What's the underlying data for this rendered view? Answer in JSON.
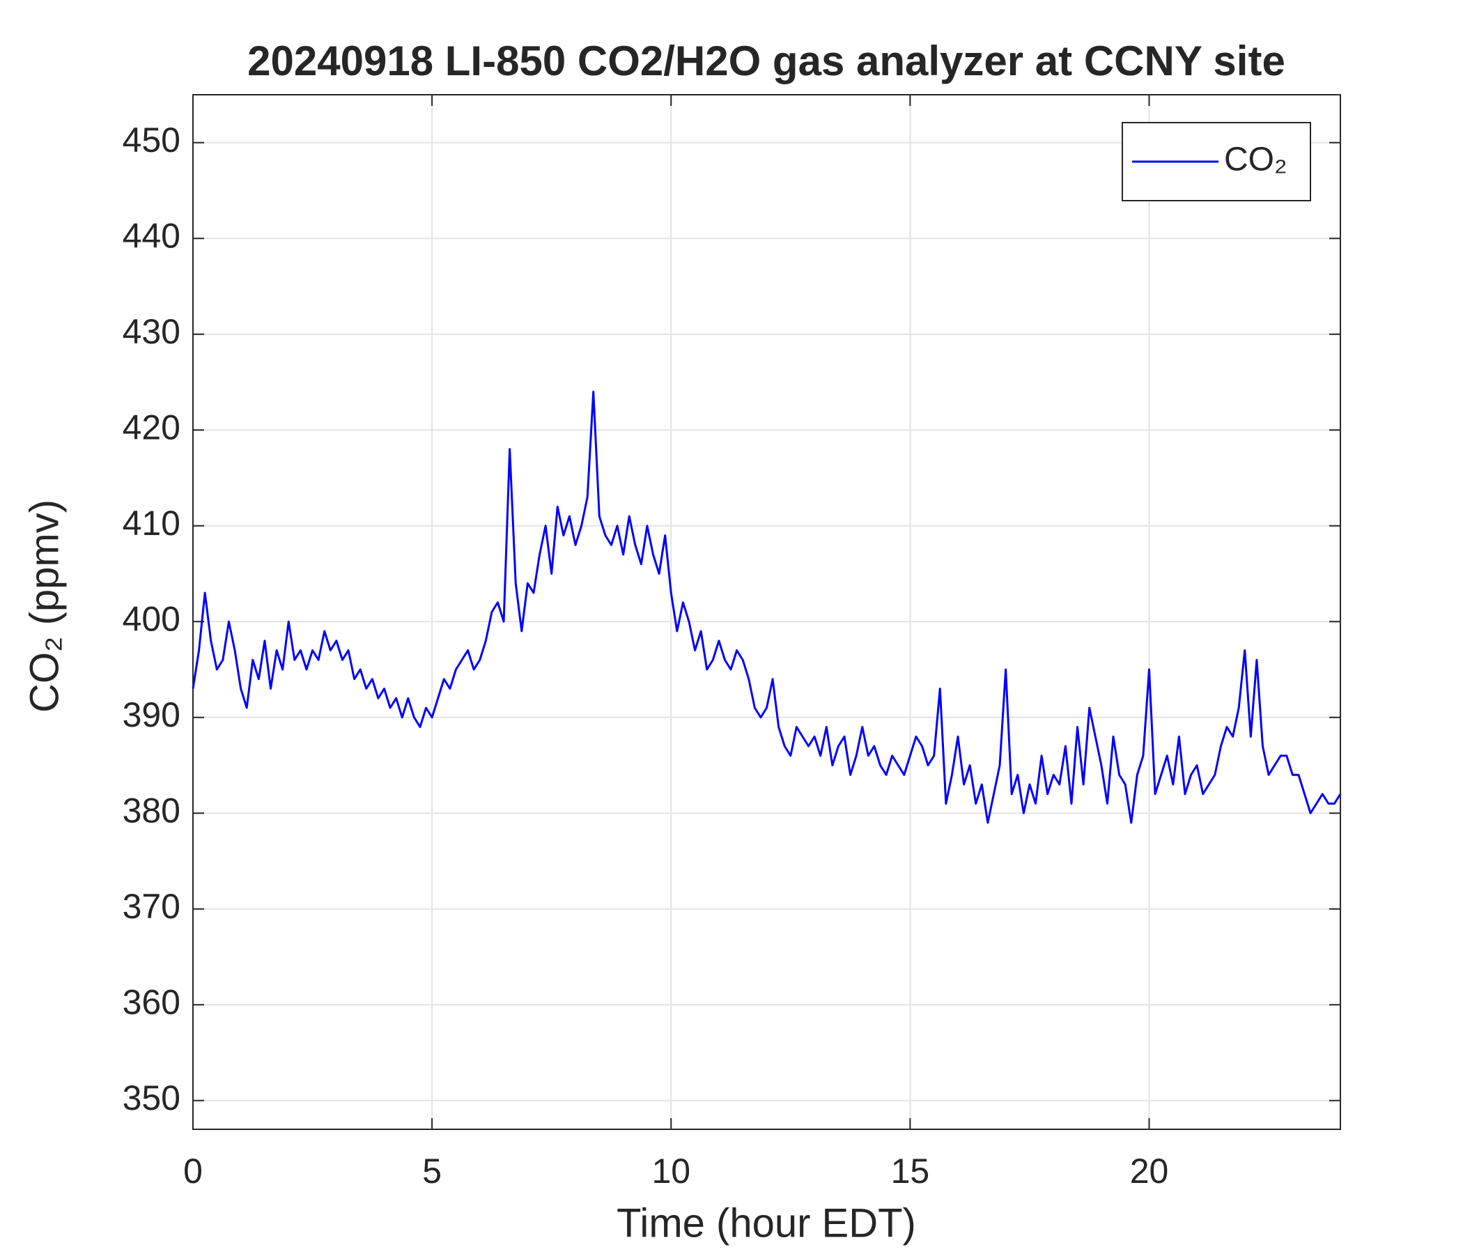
{
  "chart_data": {
    "type": "line",
    "title": "20240918 LI-850 CO2/H2O gas analyzer at CCNY site",
    "xlabel": "Time (hour EDT)",
    "ylabel": "CO₂ (ppmv)",
    "xlim": [
      0,
      24
    ],
    "xticks": [
      0,
      5,
      10,
      15,
      20
    ],
    "ylim": [
      347,
      455
    ],
    "yticks": [
      350,
      360,
      370,
      380,
      390,
      400,
      410,
      420,
      430,
      440,
      450
    ],
    "grid": true,
    "legend": "upper right",
    "x": [
      0,
      0.125,
      0.25,
      0.375,
      0.5,
      0.625,
      0.75,
      0.875,
      1,
      1.125,
      1.25,
      1.375,
      1.5,
      1.625,
      1.75,
      1.875,
      2,
      2.125,
      2.25,
      2.375,
      2.5,
      2.625,
      2.75,
      2.875,
      3,
      3.125,
      3.25,
      3.375,
      3.5,
      3.625,
      3.75,
      3.875,
      4,
      4.125,
      4.25,
      4.375,
      4.5,
      4.625,
      4.75,
      4.875,
      5,
      5.125,
      5.25,
      5.375,
      5.5,
      5.625,
      5.75,
      5.875,
      6,
      6.125,
      6.25,
      6.375,
      6.5,
      6.625,
      6.75,
      6.875,
      7,
      7.125,
      7.25,
      7.375,
      7.5,
      7.625,
      7.75,
      7.875,
      8,
      8.125,
      8.25,
      8.375,
      8.5,
      8.625,
      8.75,
      8.875,
      9,
      9.125,
      9.25,
      9.375,
      9.5,
      9.625,
      9.75,
      9.875,
      10,
      10.125,
      10.25,
      10.375,
      10.5,
      10.625,
      10.75,
      10.875,
      11,
      11.125,
      11.25,
      11.375,
      11.5,
      11.625,
      11.75,
      11.875,
      12,
      12.125,
      12.25,
      12.375,
      12.5,
      12.625,
      12.75,
      12.875,
      13,
      13.125,
      13.25,
      13.375,
      13.5,
      13.625,
      13.75,
      13.875,
      14,
      14.125,
      14.25,
      14.375,
      14.5,
      14.625,
      14.75,
      14.875,
      15,
      15.125,
      15.25,
      15.375,
      15.5,
      15.625,
      15.75,
      15.875,
      16,
      16.125,
      16.25,
      16.375,
      16.5,
      16.625,
      16.75,
      16.875,
      17,
      17.125,
      17.25,
      17.375,
      17.5,
      17.625,
      17.75,
      17.875,
      18,
      18.125,
      18.25,
      18.375,
      18.5,
      18.625,
      18.75,
      18.875,
      19,
      19.125,
      19.25,
      19.375,
      19.5,
      19.625,
      19.75,
      19.875,
      20,
      20.125,
      20.25,
      20.375,
      20.5,
      20.625,
      20.75,
      20.875,
      21,
      21.125,
      21.25,
      21.375,
      21.5,
      21.625,
      21.75,
      21.875,
      22,
      22.125,
      22.25,
      22.375,
      22.5,
      22.625,
      22.75,
      22.875,
      23,
      23.125,
      23.25,
      23.375,
      23.5,
      23.625,
      23.75,
      23.875,
      24
    ],
    "series": [
      {
        "name": "CO₂",
        "color": "#0000ff",
        "values": [
          393,
          397,
          403,
          398,
          395,
          396,
          400,
          397,
          393,
          391,
          396,
          394,
          398,
          393,
          397,
          395,
          400,
          396,
          397,
          395,
          397,
          396,
          399,
          397,
          398,
          396,
          397,
          394,
          395,
          393,
          394,
          392,
          393,
          391,
          392,
          390,
          392,
          390,
          389,
          391,
          390,
          392,
          394,
          393,
          395,
          396,
          397,
          395,
          396,
          398,
          401,
          402,
          400,
          418,
          404,
          399,
          404,
          403,
          407,
          410,
          405,
          412,
          409,
          411,
          408,
          410,
          413,
          424,
          411,
          409,
          408,
          410,
          407,
          411,
          408,
          406,
          410,
          407,
          405,
          409,
          403,
          399,
          402,
          400,
          397,
          399,
          395,
          396,
          398,
          396,
          395,
          397,
          396,
          394,
          391,
          390,
          391,
          394,
          389,
          387,
          386,
          389,
          388,
          387,
          388,
          386,
          389,
          385,
          387,
          388,
          384,
          386,
          389,
          386,
          387,
          385,
          384,
          386,
          385,
          384,
          386,
          388,
          387,
          385,
          386,
          393,
          381,
          384,
          388,
          383,
          385,
          381,
          383,
          379,
          382,
          385,
          395,
          382,
          384,
          380,
          383,
          381,
          386,
          382,
          384,
          383,
          387,
          381,
          389,
          383,
          391,
          388,
          385,
          381,
          388,
          384,
          383,
          379,
          384,
          386,
          395,
          382,
          384,
          386,
          383,
          388,
          382,
          384,
          385,
          382,
          383,
          384,
          387,
          389,
          388,
          391,
          397,
          388,
          396,
          387,
          384,
          385,
          386,
          386,
          384,
          384,
          382,
          380,
          381,
          382,
          381,
          381,
          382
        ]
      }
    ]
  }
}
